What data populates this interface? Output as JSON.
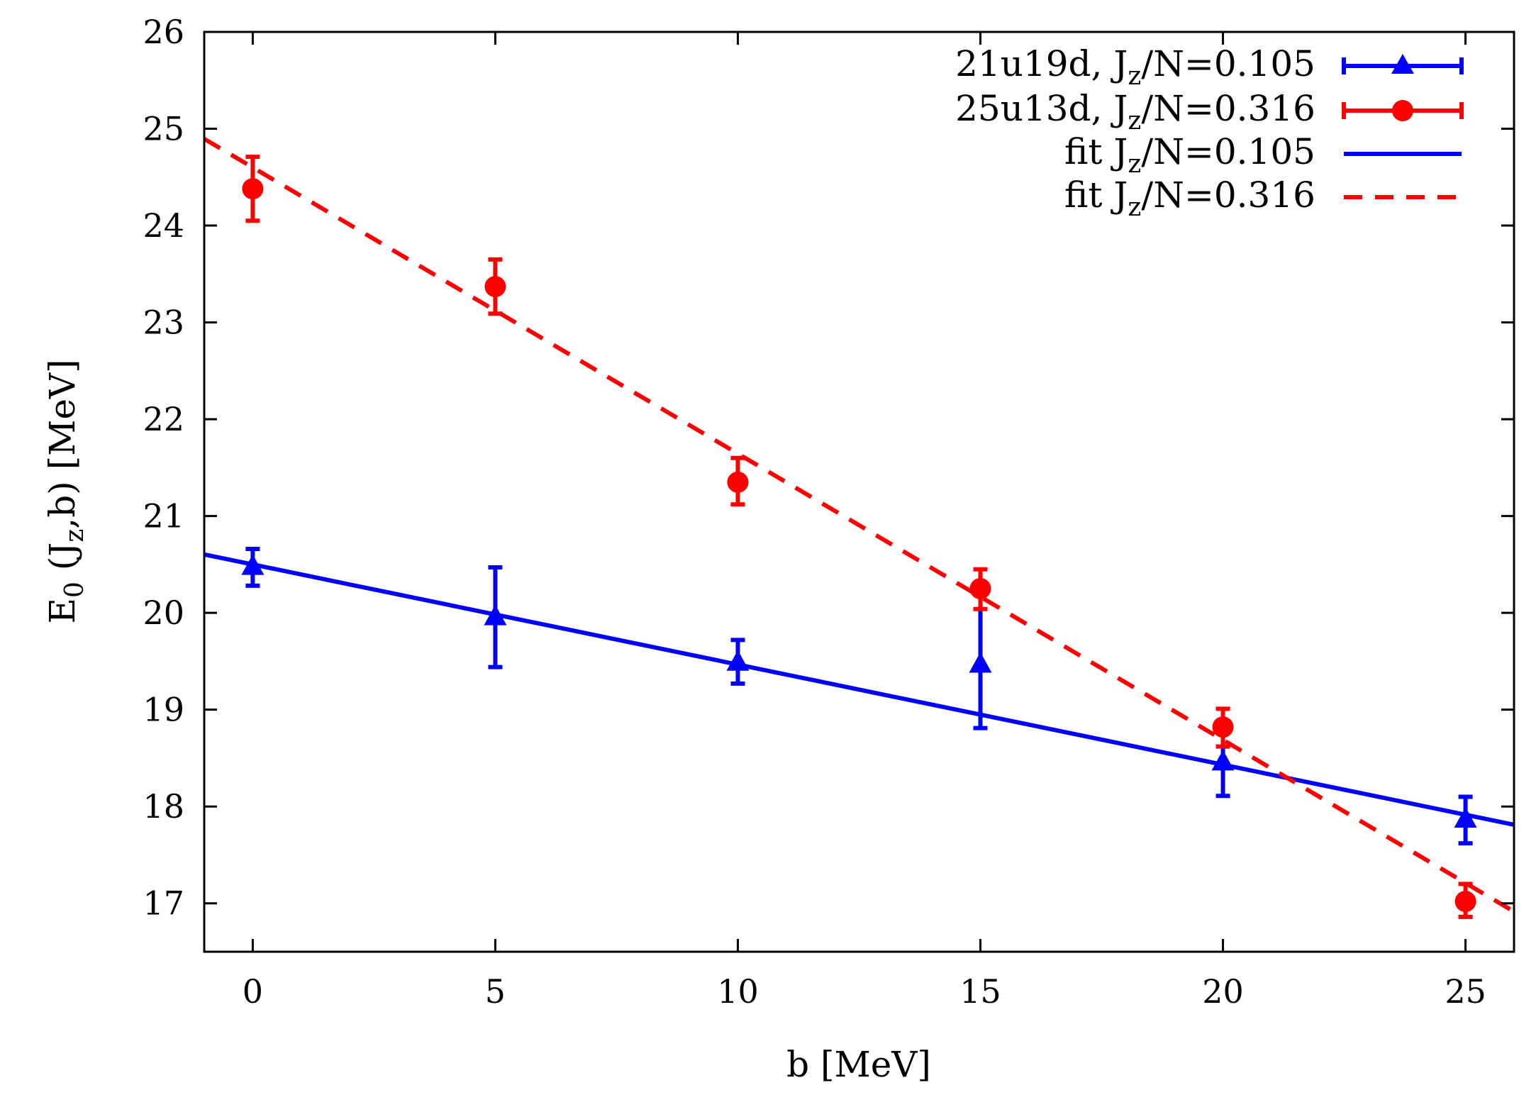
{
  "chart_data": {
    "type": "scatter",
    "xlabel": "b [MeV]",
    "ylabel": "E0 (Jz,b) [MeV]",
    "xlim": [
      -1,
      26
    ],
    "ylim": [
      16.5,
      26
    ],
    "xticks": [
      "0",
      "5",
      "10",
      "15",
      "20",
      "25"
    ],
    "yticks": [
      "17",
      "18",
      "19",
      "20",
      "21",
      "22",
      "23",
      "24",
      "25",
      "26"
    ],
    "series": [
      {
        "name": "21u19d, Jz/N=0.105",
        "color": "#0000ff",
        "marker": "triangle",
        "x": [
          0,
          5,
          10,
          15,
          20,
          25
        ],
        "y": [
          20.48,
          19.96,
          19.49,
          19.47,
          18.46,
          17.87
        ],
        "err_low": [
          0.2,
          0.52,
          0.22,
          0.66,
          0.35,
          0.25
        ],
        "err_high": [
          0.18,
          0.51,
          0.23,
          0.73,
          0.38,
          0.23
        ]
      },
      {
        "name": "25u13d, Jz/N=0.316",
        "color": "#ff0000",
        "marker": "circle",
        "x": [
          0,
          5,
          10,
          15,
          20,
          25
        ],
        "y": [
          24.38,
          23.37,
          21.35,
          20.25,
          18.82,
          17.02
        ],
        "err_low": [
          0.33,
          0.28,
          0.23,
          0.21,
          0.2,
          0.16
        ],
        "err_high": [
          0.33,
          0.28,
          0.25,
          0.2,
          0.19,
          0.18
        ]
      }
    ],
    "fits": [
      {
        "name": "fit Jz/N=0.105",
        "color": "#0000ff",
        "style": "solid",
        "intercept": 20.5,
        "slope": -0.1034
      },
      {
        "name": "fit Jz/N=0.316",
        "color": "#ff0000",
        "style": "dashed",
        "intercept": 24.6,
        "slope": -0.2956
      }
    ],
    "legend": {
      "position": "top-right",
      "entries": [
        {
          "label": "21u19d, J",
          "sub": "z",
          "rest": "/N=0.105"
        },
        {
          "label": "25u13d, J",
          "sub": "z",
          "rest": "/N=0.316"
        },
        {
          "label": "fit J",
          "sub": "z",
          "rest": "/N=0.105"
        },
        {
          "label": "fit J",
          "sub": "z",
          "rest": "/N=0.316"
        }
      ]
    },
    "ylabel_parts": {
      "e": "E",
      "e_sub": "0",
      "mid1": " (J",
      "j_sub": "z",
      "mid2": ",b) [MeV]"
    }
  }
}
